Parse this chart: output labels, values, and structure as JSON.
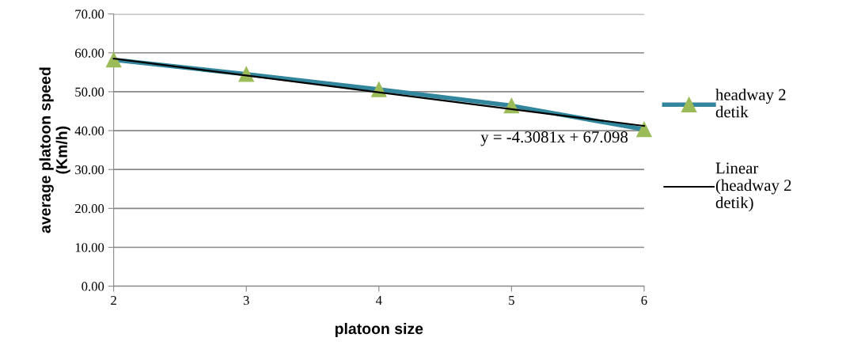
{
  "chart_data": {
    "type": "line",
    "xlabel": "platoon size",
    "ylabel": "average platoon speed (Km/h)",
    "x": [
      2,
      3,
      4,
      5,
      6
    ],
    "series": [
      {
        "name": "headway 2 detik",
        "color": "#31859c",
        "values": [
          58.2,
          54.5,
          50.6,
          46.4,
          40.3
        ],
        "marker": "triangle"
      },
      {
        "name": "Linear (headway 2 detik)",
        "color": "#000000",
        "type": "line",
        "x": [
          2,
          6
        ],
        "values": [
          58.5,
          41.2
        ],
        "marker": "none"
      }
    ],
    "annotations": [
      "y = -4.3081x + 67.098"
    ],
    "xlim": [
      2,
      6
    ],
    "xticks": [
      2,
      3,
      4,
      5,
      6
    ],
    "ylim": [
      0,
      70
    ],
    "yticks": [
      {
        "value": 0,
        "label": "0.00"
      },
      {
        "value": 10,
        "label": "10.00"
      },
      {
        "value": 20,
        "label": "20.00"
      },
      {
        "value": 30,
        "label": "30.00"
      },
      {
        "value": 40,
        "label": "40.00"
      },
      {
        "value": 50,
        "label": "50.00"
      },
      {
        "value": 60,
        "label": "60.00"
      },
      {
        "value": 70,
        "label": "70.00"
      }
    ],
    "grid": "y",
    "legend": "right"
  }
}
